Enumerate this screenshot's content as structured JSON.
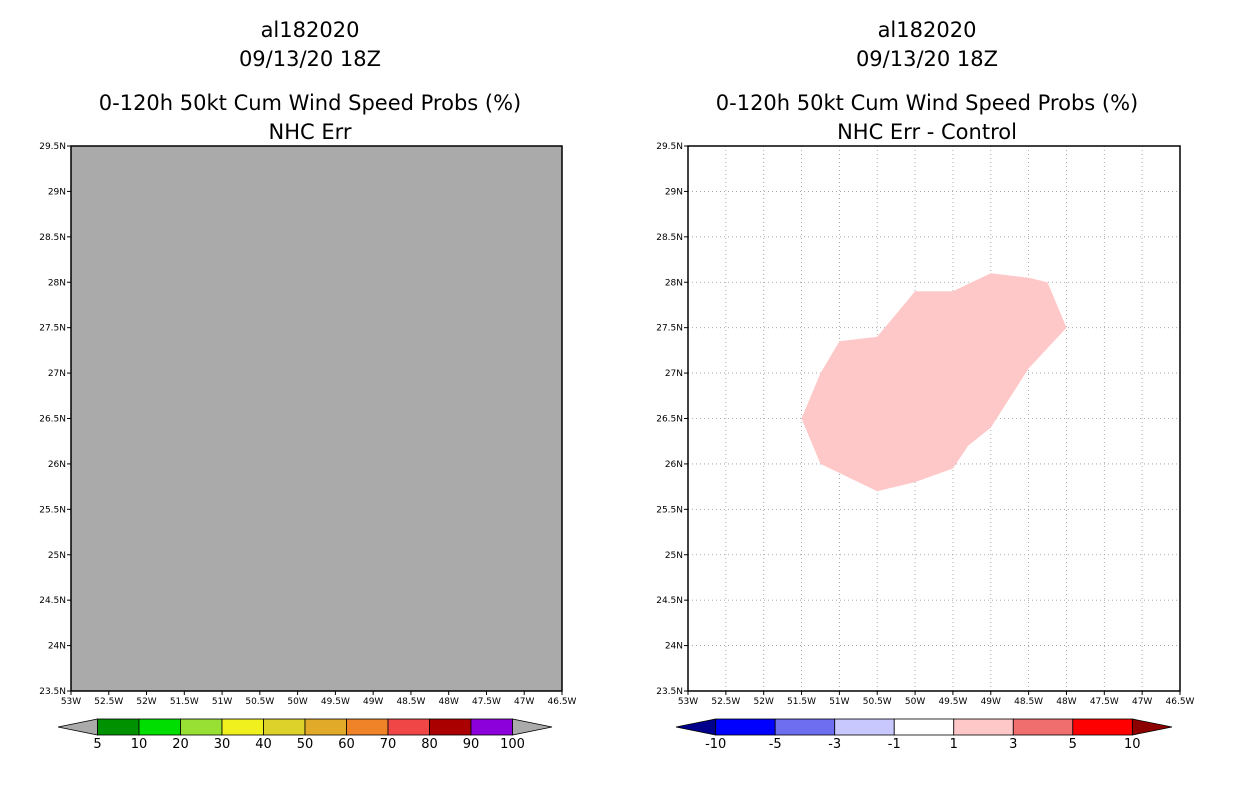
{
  "panels": [
    {
      "storm_id": "al182020",
      "datetime": "09/13/20 18Z",
      "product": "0-120h 50kt Cum Wind Speed Probs (%)",
      "subtitle": "NHC Err",
      "background_fill": "#aaaaaa",
      "show_grid": false
    },
    {
      "storm_id": "al182020",
      "datetime": "09/13/20 18Z",
      "product": "0-120h 50kt Cum Wind Speed Probs (%)",
      "subtitle": "NHC Err - Control",
      "background_fill": "#ffffff",
      "show_grid": true
    }
  ],
  "chart_data": [
    {
      "type": "heatmap",
      "title": "0-120h 50kt Cum Wind Speed Probs (%) NHC Err",
      "xlim": [
        -53,
        -46.5
      ],
      "ylim": [
        23.5,
        29.5
      ],
      "x_ticks": [
        {
          "value": -53,
          "label": "53W"
        },
        {
          "value": -52.5,
          "label": "52.5W"
        },
        {
          "value": -52,
          "label": "52W"
        },
        {
          "value": -51.5,
          "label": "51.5W"
        },
        {
          "value": -51,
          "label": "51W"
        },
        {
          "value": -50.5,
          "label": "50.5W"
        },
        {
          "value": -50,
          "label": "50W"
        },
        {
          "value": -49.5,
          "label": "49.5W"
        },
        {
          "value": -49,
          "label": "49W"
        },
        {
          "value": -48.5,
          "label": "48.5W"
        },
        {
          "value": -48,
          "label": "48W"
        },
        {
          "value": -47.5,
          "label": "47.5W"
        },
        {
          "value": -47,
          "label": "47W"
        },
        {
          "value": -46.5,
          "label": "46.5W"
        }
      ],
      "y_ticks": [
        {
          "value": 23.5,
          "label": "23.5N"
        },
        {
          "value": 24,
          "label": "24N"
        },
        {
          "value": 24.5,
          "label": "24.5N"
        },
        {
          "value": 25,
          "label": "25N"
        },
        {
          "value": 25.5,
          "label": "25.5N"
        },
        {
          "value": 26,
          "label": "26N"
        },
        {
          "value": 26.5,
          "label": "26.5N"
        },
        {
          "value": 27,
          "label": "27N"
        },
        {
          "value": 27.5,
          "label": "27.5N"
        },
        {
          "value": 28,
          "label": "28N"
        },
        {
          "value": 28.5,
          "label": "28.5N"
        },
        {
          "value": 29,
          "label": "29N"
        },
        {
          "value": 29.5,
          "label": "29.5N"
        }
      ],
      "regions": [],
      "colorbar": {
        "labels": [
          "5",
          "10",
          "20",
          "30",
          "40",
          "50",
          "60",
          "70",
          "80",
          "90",
          "100"
        ],
        "colors": [
          "#aaaaaa",
          "#009100",
          "#00dd00",
          "#99e034",
          "#f0f01e",
          "#dcd22a",
          "#e1aa28",
          "#f08228",
          "#f04646",
          "#aa0000",
          "#8c00dc",
          "#aaaaaa"
        ]
      }
    },
    {
      "type": "heatmap",
      "title": "0-120h 50kt Cum Wind Speed Probs (%) NHC Err - Control",
      "xlim": [
        -53,
        -46.5
      ],
      "ylim": [
        23.5,
        29.5
      ],
      "x_ticks": [
        {
          "value": -53,
          "label": "53W"
        },
        {
          "value": -52.5,
          "label": "52.5W"
        },
        {
          "value": -52,
          "label": "52W"
        },
        {
          "value": -51.5,
          "label": "51.5W"
        },
        {
          "value": -51,
          "label": "51W"
        },
        {
          "value": -50.5,
          "label": "50.5W"
        },
        {
          "value": -50,
          "label": "50W"
        },
        {
          "value": -49.5,
          "label": "49.5W"
        },
        {
          "value": -49,
          "label": "49W"
        },
        {
          "value": -48.5,
          "label": "48.5W"
        },
        {
          "value": -48,
          "label": "48W"
        },
        {
          "value": -47.5,
          "label": "47.5W"
        },
        {
          "value": -47,
          "label": "47W"
        },
        {
          "value": -46.5,
          "label": "46.5W"
        }
      ],
      "y_ticks": [
        {
          "value": 23.5,
          "label": "23.5N"
        },
        {
          "value": 24,
          "label": "24N"
        },
        {
          "value": 24.5,
          "label": "24.5N"
        },
        {
          "value": 25,
          "label": "25N"
        },
        {
          "value": 25.5,
          "label": "25.5N"
        },
        {
          "value": 26,
          "label": "26N"
        },
        {
          "value": 26.5,
          "label": "26.5N"
        },
        {
          "value": 27,
          "label": "27N"
        },
        {
          "value": 27.5,
          "label": "27.5N"
        },
        {
          "value": 28,
          "label": "28N"
        },
        {
          "value": 28.5,
          "label": "28.5N"
        },
        {
          "value": 29,
          "label": "29N"
        },
        {
          "value": 29.5,
          "label": "29.5N"
        }
      ],
      "regions": [
        {
          "name": "difference-1-to-3",
          "color": "#ffc8c8",
          "polygon_lonlat": [
            [
              -51.5,
              26.5
            ],
            [
              -51.25,
              26.0
            ],
            [
              -50.75,
              25.8
            ],
            [
              -50.5,
              25.7
            ],
            [
              -50.0,
              25.8
            ],
            [
              -49.5,
              25.95
            ],
            [
              -49.3,
              26.2
            ],
            [
              -49.0,
              26.4
            ],
            [
              -48.5,
              27.05
            ],
            [
              -48.0,
              27.5
            ],
            [
              -48.25,
              28.0
            ],
            [
              -48.5,
              28.05
            ],
            [
              -49.0,
              28.1
            ],
            [
              -49.5,
              27.9
            ],
            [
              -50.0,
              27.9
            ],
            [
              -50.5,
              27.4
            ],
            [
              -51.0,
              27.35
            ],
            [
              -51.25,
              27.0
            ],
            [
              -51.5,
              26.5
            ]
          ]
        }
      ],
      "colorbar": {
        "labels": [
          "-10",
          "-5",
          "-3",
          "-1",
          "1",
          "3",
          "5",
          "10"
        ],
        "colors": [
          "#00008c",
          "#0000ff",
          "#6e6ef0",
          "#c8c8ff",
          "#ffffff",
          "#ffc8c8",
          "#f06e6e",
          "#ff0000",
          "#8c0000"
        ]
      }
    }
  ]
}
